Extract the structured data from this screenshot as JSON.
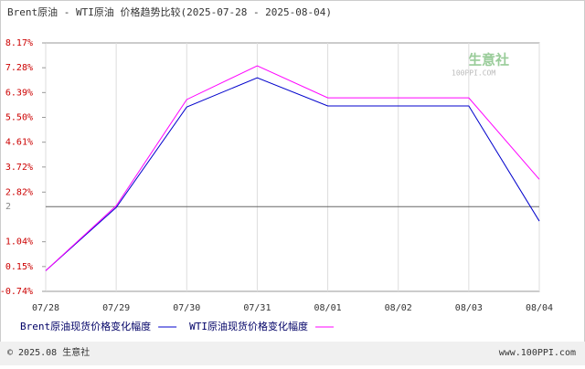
{
  "chart_data": {
    "type": "line",
    "title": "Brent原油 - WTI原油 价格趋势比较(2025-07-28 - 2025-08-04)",
    "categories": [
      "07/28",
      "07/29",
      "07/30",
      "07/31",
      "08/01",
      "08/02",
      "08/03",
      "08/04"
    ],
    "series": [
      {
        "name": "Brent原油现货价格变化幅度",
        "color": "#0000cc",
        "values": [
          0,
          2.27,
          5.87,
          6.92,
          5.91,
          5.91,
          5.91,
          1.78
        ]
      },
      {
        "name": "WTI原油现货价格变化幅度",
        "color": "#ff00ff",
        "values": [
          0,
          2.33,
          6.14,
          7.35,
          6.2,
          6.2,
          6.2,
          3.28
        ]
      }
    ],
    "ylim": [
      -0.74,
      8.17
    ],
    "yticks": [
      {
        "value": -0.74,
        "label": "-0.74%"
      },
      {
        "value": 0.15,
        "label": "0.15%"
      },
      {
        "value": 1.04,
        "label": "1.04%"
      },
      {
        "value": 2.3,
        "label": "2"
      },
      {
        "value": 2.82,
        "label": "2.82%"
      },
      {
        "value": 3.72,
        "label": "3.72%"
      },
      {
        "value": 4.61,
        "label": "4.61%"
      },
      {
        "value": 5.5,
        "label": "5.50%"
      },
      {
        "value": 6.39,
        "label": "6.39%"
      },
      {
        "value": 7.28,
        "label": "7.28%"
      },
      {
        "value": 8.17,
        "label": "8.17%"
      }
    ],
    "watermark": "生意社",
    "watermark_url": "100PPI.COM",
    "footer_left": "© 2025.08 生意社",
    "footer_right": "www.100PPI.com"
  }
}
